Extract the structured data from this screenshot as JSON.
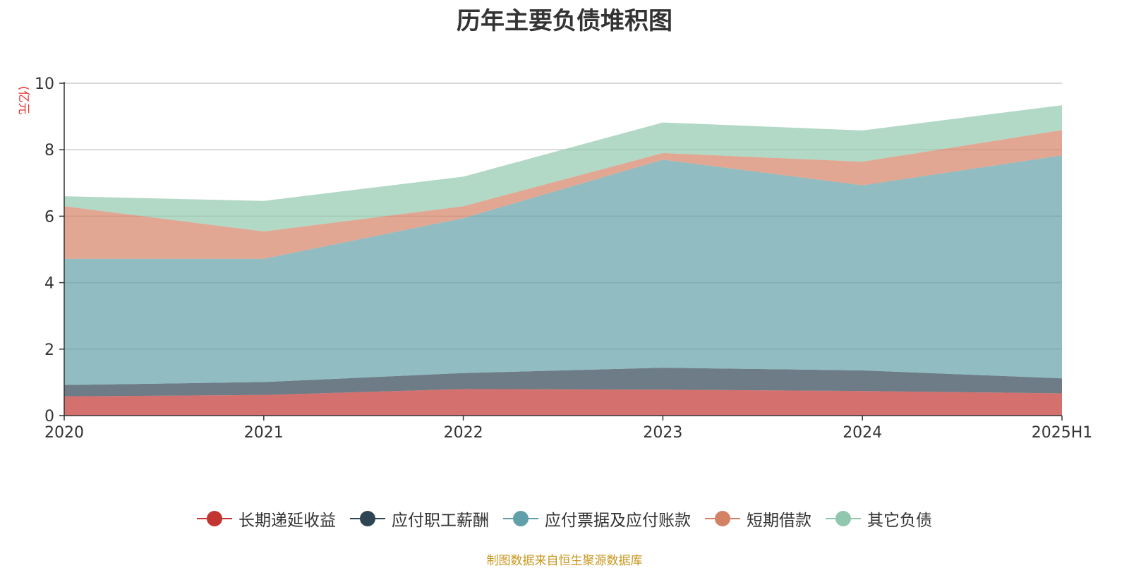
{
  "chart_data": {
    "type": "area",
    "stacked": true,
    "title": "历年主要负债堆积图",
    "unit_label": "亿元",
    "unit_label_raw": "(亿元",
    "categories": [
      "2020",
      "2021",
      "2022",
      "2023",
      "2024",
      "2025H1"
    ],
    "ylim": [
      0,
      10
    ],
    "yticks": [
      0,
      2,
      4,
      6,
      8,
      10
    ],
    "grid": true,
    "legend_position": "bottom",
    "series": [
      {
        "name": "长期递延收益",
        "color": "#c23531",
        "values": [
          0.58,
          0.62,
          0.8,
          0.78,
          0.74,
          0.67
        ]
      },
      {
        "name": "应付职工薪酬",
        "color": "#2f4554",
        "values": [
          0.34,
          0.39,
          0.48,
          0.66,
          0.62,
          0.45
        ]
      },
      {
        "name": "应付票据及应付账款",
        "color": "#61a0a8",
        "values": [
          3.8,
          3.71,
          4.66,
          6.26,
          5.57,
          6.71
        ]
      },
      {
        "name": "短期借款",
        "color": "#d48265",
        "values": [
          1.58,
          0.82,
          0.36,
          0.2,
          0.71,
          0.76
        ]
      },
      {
        "name": "其它负债",
        "color": "#91c7ae",
        "values": [
          0.3,
          0.92,
          0.89,
          0.92,
          0.94,
          0.75
        ]
      }
    ],
    "source": "制图数据来自恒生聚源数据库"
  }
}
